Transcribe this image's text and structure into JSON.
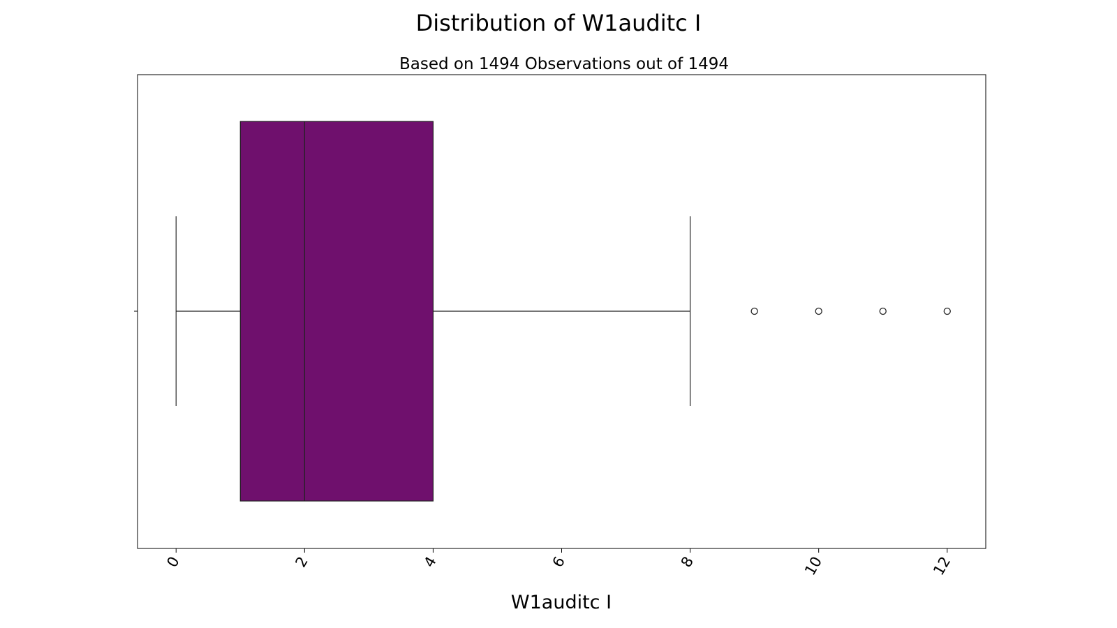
{
  "chart_data": {
    "type": "box",
    "title": "Distribution of W1auditc I",
    "subtitle": "Based on 1494 Observations out of 1494",
    "xlabel": "W1auditc I",
    "ylabel": "",
    "xlim": [
      -0.6,
      12.6
    ],
    "xticks": [
      0,
      2,
      4,
      6,
      8,
      10,
      12
    ],
    "xtick_labels": [
      "0",
      "2",
      "4",
      "6",
      "8",
      "10",
      "12"
    ],
    "tick_rotation_deg": 60,
    "grid": false,
    "box": {
      "whisker_low": 0,
      "q1": 1,
      "median": 2,
      "q3": 4,
      "whisker_high": 8,
      "outliers": [
        9,
        10,
        11,
        12
      ]
    },
    "colors": {
      "box_fill": "#6f106d",
      "line": "#222222",
      "frame": "#000000"
    }
  }
}
